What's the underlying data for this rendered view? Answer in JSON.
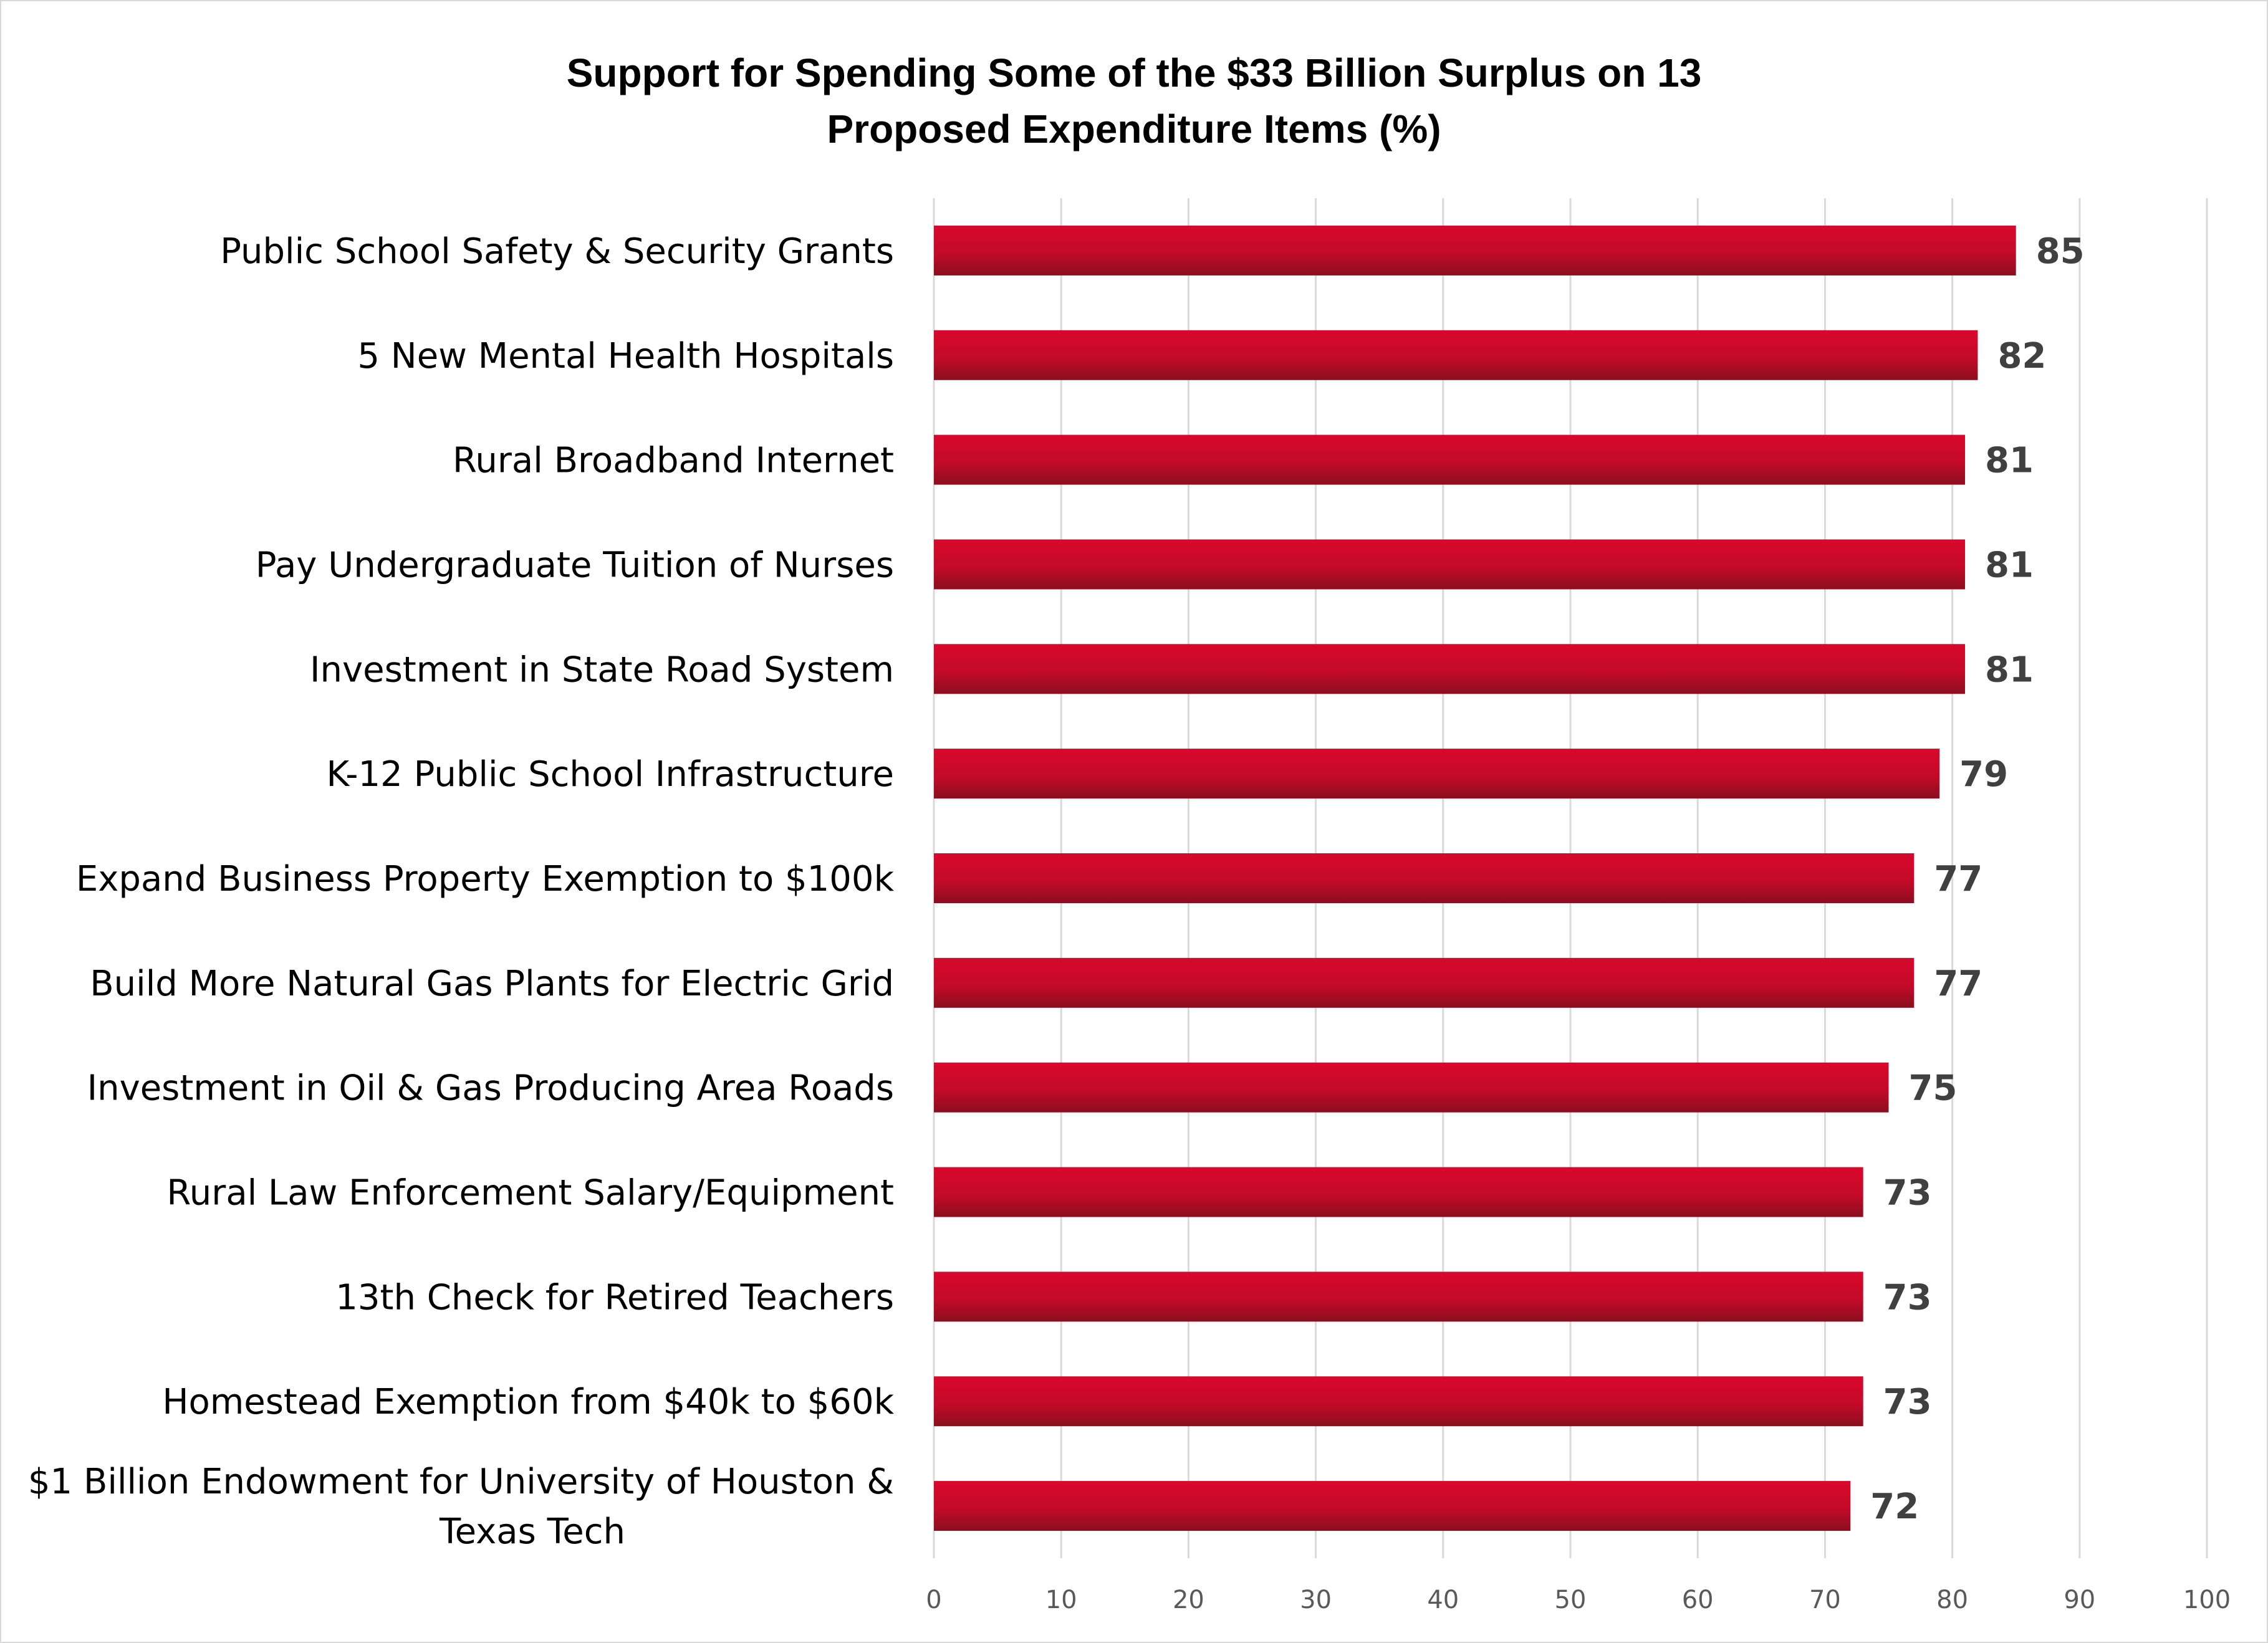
{
  "chart_data": {
    "type": "bar",
    "orientation": "horizontal",
    "title_lines": [
      "Support for Spending Some of the $33 Billion Surplus on 13",
      "Proposed Expenditure Items (%)"
    ],
    "categories": [
      [
        "Public School Safety & Security Grants"
      ],
      [
        "5 New Mental Health Hospitals"
      ],
      [
        "Rural Broadband Internet"
      ],
      [
        "Pay Undergraduate Tuition of Nurses"
      ],
      [
        "Investment in State Road System"
      ],
      [
        "K-12 Public School Infrastructure"
      ],
      [
        "Expand Business Property Exemption to $100k"
      ],
      [
        "Build More Natural Gas Plants for Electric Grid"
      ],
      [
        "Investment in Oil & Gas Producing Area Roads"
      ],
      [
        "Rural Law Enforcement Salary/Equipment"
      ],
      [
        "13th Check for Retired Teachers"
      ],
      [
        "Homestead Exemption from $40k to $60k"
      ],
      [
        "$1 Billion Endowment for University of Houston &",
        "Texas Tech"
      ]
    ],
    "values": [
      85,
      82,
      81,
      81,
      81,
      79,
      77,
      77,
      75,
      73,
      73,
      73,
      72
    ],
    "xlim": [
      0,
      100
    ],
    "xticks": [
      0,
      10,
      20,
      30,
      40,
      50,
      60,
      70,
      80,
      90,
      100
    ],
    "grid": "vertical",
    "data_labels": true,
    "bar_color_top": "#d9082c",
    "bar_color_bottom": "#8a0f1f"
  }
}
